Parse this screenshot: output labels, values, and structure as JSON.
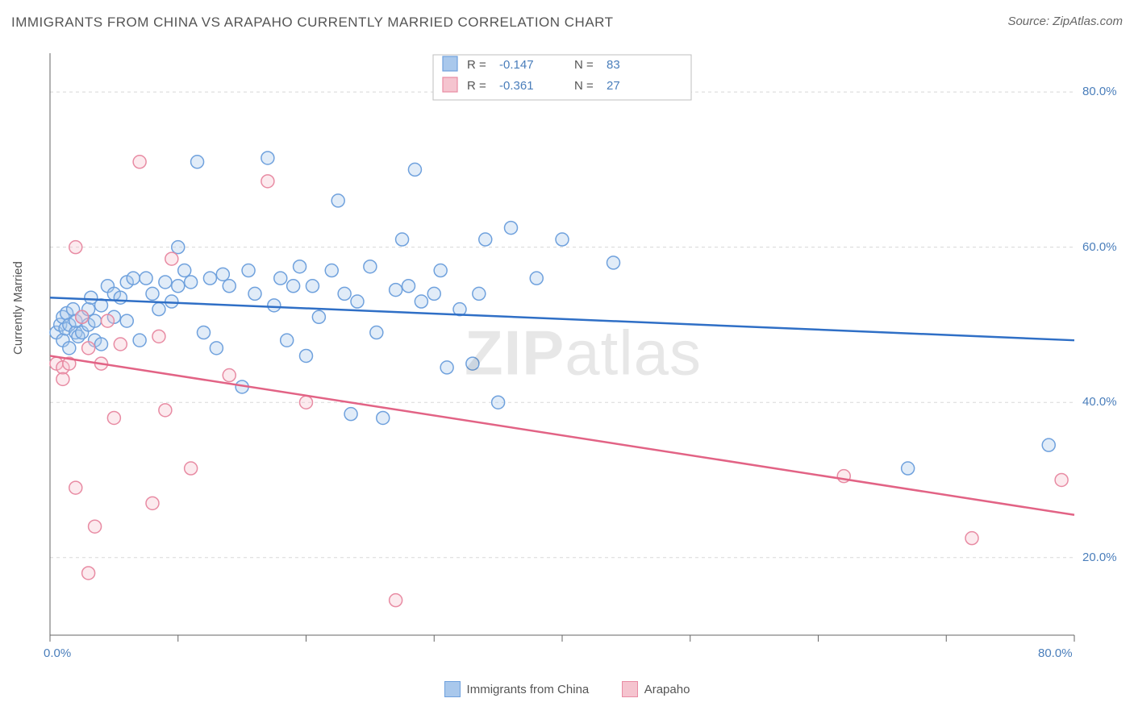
{
  "title": "IMMIGRANTS FROM CHINA VS ARAPAHO CURRENTLY MARRIED CORRELATION CHART",
  "source": "Source: ZipAtlas.com",
  "ylabel": "Currently Married",
  "watermark_bold": "ZIP",
  "watermark_rest": "atlas",
  "chart": {
    "type": "scatter",
    "xlim": [
      0,
      80
    ],
    "ylim": [
      10,
      85
    ],
    "x_ticks": [
      0,
      10,
      20,
      30,
      40,
      50,
      60,
      70,
      80
    ],
    "x_tick_labels_show": [
      0,
      80
    ],
    "x_tick_labels": {
      "0": "0.0%",
      "80": "80.0%"
    },
    "y_gridlines": [
      20,
      40,
      60,
      80
    ],
    "y_tick_labels": {
      "20": "20.0%",
      "40": "40.0%",
      "60": "60.0%",
      "80": "80.0%"
    },
    "axis_color": "#666666",
    "grid_color": "#d8d8d8",
    "grid_dash": "4 4",
    "tick_label_color": "#4a7ebb",
    "background_color": "#ffffff",
    "marker_radius": 8,
    "marker_stroke_width": 1.5,
    "marker_fill_opacity": 0.35,
    "line_width": 2.5
  },
  "series": [
    {
      "name": "Immigrants from China",
      "color_fill": "#a9c8ec",
      "color_stroke": "#6fa1dd",
      "line_color": "#2f6fc6",
      "R": "-0.147",
      "N": "83",
      "trend": {
        "x1": 0,
        "y1": 53.5,
        "x2": 80,
        "y2": 48.0
      },
      "points": [
        [
          0.5,
          49
        ],
        [
          0.8,
          50
        ],
        [
          1,
          51
        ],
        [
          1,
          48
        ],
        [
          1.2,
          49.5
        ],
        [
          1.3,
          51.5
        ],
        [
          1.5,
          50
        ],
        [
          1.5,
          47
        ],
        [
          1.8,
          52
        ],
        [
          2,
          49
        ],
        [
          2,
          50.5
        ],
        [
          2.2,
          48.5
        ],
        [
          2.5,
          51
        ],
        [
          2.5,
          49
        ],
        [
          3,
          52
        ],
        [
          3,
          50
        ],
        [
          3.2,
          53.5
        ],
        [
          3.5,
          50.5
        ],
        [
          3.5,
          48
        ],
        [
          4,
          52.5
        ],
        [
          4,
          47.5
        ],
        [
          4.5,
          55
        ],
        [
          5,
          54
        ],
        [
          5,
          51
        ],
        [
          5.5,
          53.5
        ],
        [
          6,
          55.5
        ],
        [
          6,
          50.5
        ],
        [
          6.5,
          56
        ],
        [
          7,
          48
        ],
        [
          7.5,
          56
        ],
        [
          8,
          54
        ],
        [
          8.5,
          52
        ],
        [
          9,
          55.5
        ],
        [
          9.5,
          53
        ],
        [
          10,
          55
        ],
        [
          10,
          60
        ],
        [
          10.5,
          57
        ],
        [
          11,
          55.5
        ],
        [
          11.5,
          71
        ],
        [
          12,
          49
        ],
        [
          12.5,
          56
        ],
        [
          13,
          47
        ],
        [
          13.5,
          56.5
        ],
        [
          14,
          55
        ],
        [
          15,
          42
        ],
        [
          15.5,
          57
        ],
        [
          16,
          54
        ],
        [
          17,
          71.5
        ],
        [
          17.5,
          52.5
        ],
        [
          18,
          56
        ],
        [
          18.5,
          48
        ],
        [
          19,
          55
        ],
        [
          19.5,
          57.5
        ],
        [
          20,
          46
        ],
        [
          20.5,
          55
        ],
        [
          21,
          51
        ],
        [
          22,
          57
        ],
        [
          22.5,
          66
        ],
        [
          23,
          54
        ],
        [
          23.5,
          38.5
        ],
        [
          24,
          53
        ],
        [
          25,
          57.5
        ],
        [
          25.5,
          49
        ],
        [
          26,
          38
        ],
        [
          27,
          54.5
        ],
        [
          27.5,
          61
        ],
        [
          28,
          55
        ],
        [
          28.5,
          70
        ],
        [
          29,
          53
        ],
        [
          30,
          54
        ],
        [
          30.5,
          57
        ],
        [
          31,
          44.5
        ],
        [
          32,
          52
        ],
        [
          33,
          45
        ],
        [
          33.5,
          54
        ],
        [
          34,
          61
        ],
        [
          35,
          40
        ],
        [
          36,
          62.5
        ],
        [
          38,
          56
        ],
        [
          40,
          61
        ],
        [
          44,
          58
        ],
        [
          67,
          31.5
        ],
        [
          78,
          34.5
        ]
      ]
    },
    {
      "name": "Arapaho",
      "color_fill": "#f5c4cf",
      "color_stroke": "#e88ba3",
      "line_color": "#e26385",
      "R": "-0.361",
      "N": "27",
      "trend": {
        "x1": 0,
        "y1": 46.0,
        "x2": 80,
        "y2": 25.5
      },
      "points": [
        [
          0.5,
          45
        ],
        [
          1,
          44.5
        ],
        [
          1,
          43
        ],
        [
          1.5,
          45
        ],
        [
          2,
          60
        ],
        [
          2,
          29
        ],
        [
          2.5,
          51
        ],
        [
          3,
          18
        ],
        [
          3,
          47
        ],
        [
          3.5,
          24
        ],
        [
          4,
          45
        ],
        [
          4.5,
          50.5
        ],
        [
          5,
          38
        ],
        [
          5.5,
          47.5
        ],
        [
          7,
          71
        ],
        [
          8,
          27
        ],
        [
          8.5,
          48.5
        ],
        [
          9,
          39
        ],
        [
          9.5,
          58.5
        ],
        [
          11,
          31.5
        ],
        [
          14,
          43.5
        ],
        [
          17,
          68.5
        ],
        [
          20,
          40
        ],
        [
          27,
          14.5
        ],
        [
          62,
          30.5
        ],
        [
          72,
          22.5
        ],
        [
          79,
          30
        ]
      ]
    }
  ],
  "legend_box": {
    "border_color": "#bfbfbf",
    "bg": "#ffffff",
    "label_R": "R =",
    "label_N": "N =",
    "value_color": "#4a7ebb",
    "text_color": "#555555"
  },
  "bottom_legend": [
    {
      "label": "Immigrants from China",
      "fill": "#a9c8ec",
      "stroke": "#6fa1dd"
    },
    {
      "label": "Arapaho",
      "fill": "#f5c4cf",
      "stroke": "#e88ba3"
    }
  ]
}
